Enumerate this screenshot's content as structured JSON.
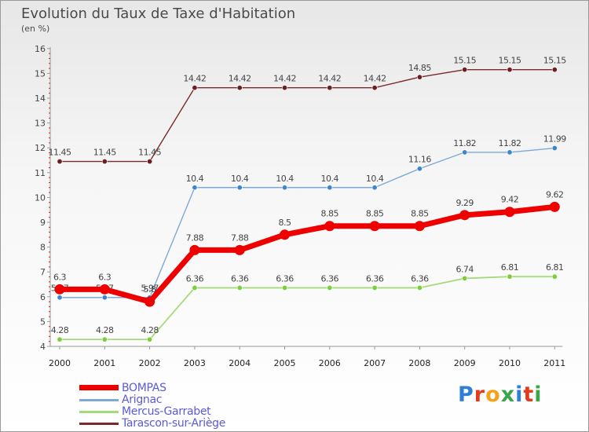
{
  "title": "Evolution du Taux de Taxe d'Habitation",
  "unit_label": "(en %)",
  "brand": {
    "text": "Proxiti",
    "letter_colors": [
      "#2f7fd6",
      "#e53a1e",
      "#f2a31a",
      "#3aa54a",
      "#2f7fd6",
      "#e53a1e",
      "#3aa54a"
    ]
  },
  "chart_data": {
    "type": "line",
    "title": "Evolution du Taux de Taxe d'Habitation",
    "ylabel": "(en %)",
    "xlabel": "",
    "x": [
      "2000",
      "2001",
      "2002",
      "2003",
      "2004",
      "2005",
      "2006",
      "2007",
      "2008",
      "2009",
      "2010",
      "2011"
    ],
    "ylim": [
      4,
      16
    ],
    "yticks": [
      "4",
      "5",
      "6",
      "7",
      "8",
      "9",
      "10",
      "11",
      "12",
      "13",
      "14",
      "15",
      "16"
    ],
    "grid": false,
    "legend_position": "bottom-left",
    "series": [
      {
        "name": "Tarascon-sur-Ariège",
        "color": "#7a2a2a",
        "values": [
          11.45,
          11.45,
          11.45,
          14.42,
          14.42,
          14.42,
          14.42,
          14.42,
          14.85,
          15.15,
          15.15,
          15.15
        ],
        "labels": [
          "11.45",
          "11.45",
          "11.45",
          "14.42",
          "14.42",
          "14.42",
          "14.42",
          "14.42",
          "14.85",
          "15.15",
          "15.15",
          "15.15"
        ]
      },
      {
        "name": "Arignac",
        "color": "#7ca9d8",
        "values": [
          5.97,
          5.97,
          5.97,
          10.4,
          10.4,
          10.4,
          10.4,
          10.4,
          11.16,
          11.82,
          11.82,
          11.99
        ],
        "labels": [
          "5.97",
          "5.97",
          "5.97",
          "10.4",
          "10.4",
          "10.4",
          "10.4",
          "10.4",
          "11.16",
          "11.82",
          "11.82",
          "11.99"
        ]
      },
      {
        "name": "Mercus-Garrabet",
        "color": "#a6db7c",
        "values": [
          4.28,
          4.28,
          4.28,
          6.36,
          6.36,
          6.36,
          6.36,
          6.36,
          6.36,
          6.74,
          6.81,
          6.81
        ],
        "labels": [
          "4.28",
          "4.28",
          "4.28",
          "6.36",
          "6.36",
          "6.36",
          "6.36",
          "6.36",
          "6.36",
          "6.74",
          "6.81",
          "6.81"
        ]
      },
      {
        "name": "BOMPAS",
        "color": "#ee0000",
        "values": [
          6.3,
          6.3,
          5.8,
          7.88,
          7.88,
          8.5,
          8.85,
          8.85,
          8.85,
          9.29,
          9.42,
          9.62
        ],
        "labels": [
          "6.3",
          "6.3",
          "5.8",
          "7.88",
          "7.88",
          "8.5",
          "8.85",
          "8.85",
          "8.85",
          "9.29",
          "9.42",
          "9.62"
        ]
      }
    ],
    "legend": [
      "BOMPAS",
      "Arignac",
      "Mercus-Garrabet",
      "Tarascon-sur-Ariège"
    ]
  }
}
